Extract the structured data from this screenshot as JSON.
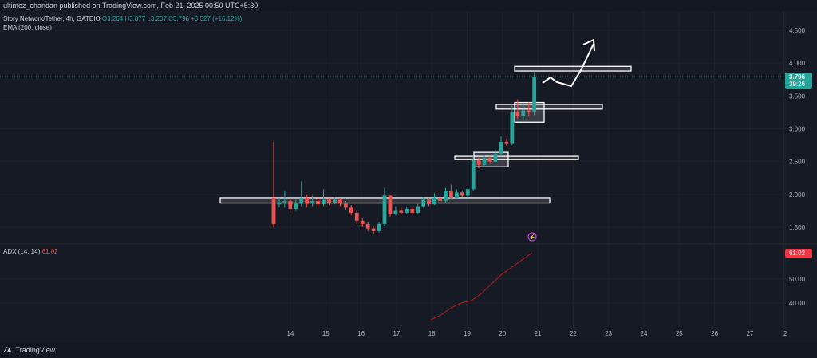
{
  "header": {
    "published": "ultimez_chandan published on TradingView.com, Feb 21, 2025 00:50 UTC+5:30"
  },
  "legend": {
    "symbol": "Story Network/Tether, 4h, GATEIO",
    "o_label": "O",
    "o_val": "3.264",
    "h_label": "H",
    "h_val": "3.877",
    "l_label": "L",
    "l_val": "3.207",
    "c_label": "C",
    "c_val": "3.796",
    "change": "+0.527 (+16.12%)",
    "ema": "EMA (200, close)",
    "adx_label": "ADX (14, 14)",
    "adx_val": "61.02"
  },
  "price_axis": {
    "ticks": [
      "4.500",
      "4.000",
      "3.500",
      "3.000",
      "2.500",
      "2.000",
      "1.500"
    ],
    "last_price": "3.796",
    "countdown": "39:26"
  },
  "adx_axis": {
    "ticks": [
      "50.00",
      "40.00"
    ],
    "last_value": "61.02"
  },
  "time_axis": {
    "ticks": [
      "14",
      "15",
      "16",
      "17",
      "18",
      "19",
      "20",
      "21",
      "22",
      "23",
      "24",
      "25",
      "26",
      "27",
      "2"
    ]
  },
  "footer": {
    "brand": "TradingView"
  },
  "colors": {
    "up": "#26a69a",
    "down": "#ef5350",
    "background": "#161a25",
    "adx_line": "#b71c1c",
    "price_label": "#26a69a",
    "adx_label": "#f23645"
  },
  "chart_data": {
    "type": "candlestick",
    "symbol": "Story Network/Tether",
    "timeframe": "4h",
    "exchange": "GATEIO",
    "ylim": [
      1.2,
      4.7
    ],
    "x_ticks": [
      "14",
      "15",
      "16",
      "17",
      "18",
      "19",
      "20",
      "21",
      "22",
      "23",
      "24",
      "25",
      "26",
      "27",
      "2"
    ],
    "candles": [
      [
        1.95,
        1.55,
        2.8,
        1.5
      ],
      [
        1.85,
        1.88,
        1.95,
        1.8
      ],
      [
        1.88,
        1.9,
        2.05,
        1.8
      ],
      [
        1.9,
        1.78,
        1.95,
        1.72
      ],
      [
        1.78,
        1.86,
        1.92,
        1.75
      ],
      [
        1.86,
        1.95,
        2.2,
        1.82
      ],
      [
        1.95,
        1.86,
        2.0,
        1.8
      ],
      [
        1.86,
        1.9,
        1.98,
        1.82
      ],
      [
        1.9,
        1.85,
        1.95,
        1.82
      ],
      [
        1.85,
        1.92,
        2.08,
        1.82
      ],
      [
        1.92,
        1.88,
        1.95,
        1.84
      ],
      [
        1.88,
        1.92,
        1.96,
        1.85
      ],
      [
        1.92,
        1.86,
        1.95,
        1.82
      ],
      [
        1.86,
        1.8,
        1.9,
        1.76
      ],
      [
        1.8,
        1.72,
        1.84,
        1.68
      ],
      [
        1.72,
        1.6,
        1.75,
        1.55
      ],
      [
        1.6,
        1.55,
        1.63,
        1.5
      ],
      [
        1.55,
        1.48,
        1.58,
        1.44
      ],
      [
        1.48,
        1.44,
        1.52,
        1.4
      ],
      [
        1.44,
        1.55,
        1.58,
        1.42
      ],
      [
        1.55,
        1.98,
        2.1,
        1.52
      ],
      [
        1.98,
        1.7,
        2.0,
        1.66
      ],
      [
        1.7,
        1.75,
        1.82,
        1.68
      ],
      [
        1.75,
        1.72,
        1.8,
        1.69
      ],
      [
        1.72,
        1.78,
        1.82,
        1.7
      ],
      [
        1.78,
        1.72,
        1.8,
        1.68
      ],
      [
        1.72,
        1.82,
        1.86,
        1.7
      ],
      [
        1.82,
        1.92,
        1.96,
        1.8
      ],
      [
        1.92,
        1.85,
        1.95,
        1.82
      ],
      [
        1.85,
        1.95,
        2.02,
        1.84
      ],
      [
        1.95,
        1.9,
        1.98,
        1.88
      ],
      [
        1.9,
        2.05,
        2.1,
        1.88
      ],
      [
        2.05,
        1.95,
        2.15,
        1.92
      ],
      [
        1.95,
        2.03,
        2.08,
        1.93
      ],
      [
        2.03,
        1.98,
        2.06,
        1.96
      ],
      [
        1.98,
        2.08,
        2.12,
        1.96
      ],
      [
        2.08,
        2.52,
        2.58,
        2.05
      ],
      [
        2.52,
        2.45,
        2.56,
        2.4
      ],
      [
        2.45,
        2.55,
        2.6,
        2.42
      ],
      [
        2.55,
        2.5,
        2.58,
        2.46
      ],
      [
        2.5,
        2.62,
        2.68,
        2.48
      ],
      [
        2.62,
        2.8,
        2.88,
        2.58
      ],
      [
        2.8,
        2.78,
        2.85,
        2.74
      ],
      [
        2.78,
        3.25,
        3.35,
        2.75
      ],
      [
        3.25,
        3.2,
        3.45,
        3.15
      ],
      [
        3.2,
        3.28,
        3.35,
        3.1
      ],
      [
        3.28,
        3.26,
        3.4,
        3.2
      ],
      [
        3.264,
        3.796,
        3.877,
        3.207
      ]
    ],
    "adx": {
      "label": "ADX (14, 14)",
      "last": 61.02,
      "ticks": [
        50.0,
        40.0
      ],
      "values": [
        33,
        35,
        38,
        40,
        41,
        44,
        48,
        52,
        55,
        58,
        61.02
      ]
    },
    "zones": [
      {
        "low": 1.87,
        "high": 1.95
      },
      {
        "low": 2.53,
        "high": 2.58
      },
      {
        "low": 3.3,
        "high": 3.37
      },
      {
        "low": 3.88,
        "high": 3.95
      }
    ]
  }
}
